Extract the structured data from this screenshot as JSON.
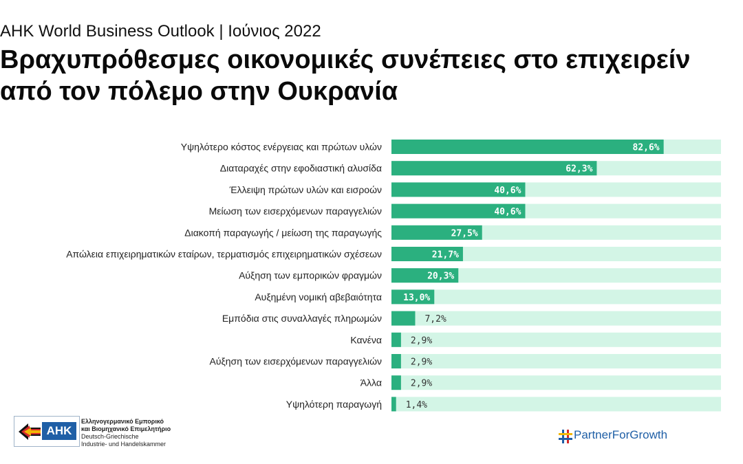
{
  "header": {
    "subtitle": "AHK World Business Outlook | Ιούνιος 2022",
    "title": "Βραχυπρόθεσμες οικονομικές συνέπειες στο επιχειρείν από τον πόλεμο στην Ουκρανία"
  },
  "chart_data": {
    "type": "bar",
    "orientation": "horizontal",
    "categories": [
      "Υψηλότερο κόστος ενέργειας και πρώτων υλών",
      "Διαταραχές στην εφοδιαστική αλυσίδα",
      "Έλλειψη πρώτων υλών και εισροών",
      "Μείωση των εισερχόμενων παραγγελιών",
      "Διακοπή παραγωγής / μείωση της παραγωγής",
      "Απώλεια επιχειρηματικών εταίρων, τερματισμός επιχειρηματικών σχέσεων",
      "Αύξηση των εμπορικών φραγμών",
      "Αυξημένη νομική αβεβαιότητα",
      "Εμπόδια στις συναλλαγές πληρωμών",
      "Κανένα",
      "Αύξηση των εισερχόμενων παραγγελιών",
      "Άλλα",
      "Υψηλότερη παραγωγή"
    ],
    "values": [
      82.6,
      62.3,
      40.6,
      40.6,
      27.5,
      21.7,
      20.3,
      13.0,
      7.2,
      2.9,
      2.9,
      2.9,
      1.4
    ],
    "value_labels": [
      "82,6%",
      "62,3%",
      "40,6%",
      "40,6%",
      "27,5%",
      "21,7%",
      "20,3%",
      "13,0%",
      "7,2%",
      "2,9%",
      "2,9%",
      "2,9%",
      "1,4%"
    ],
    "xlim": [
      0,
      100
    ],
    "colors": {
      "bar": "#2bb07f",
      "track": "#d3f5e6"
    },
    "grid": false,
    "legend": "none"
  },
  "footer": {
    "ahk_logo_text": "AHK",
    "ahk_org_lines": [
      "Ελληνογερμανικό Εμπορικό",
      "και Βιομηχανικό Επιμελητήριο",
      "Deutsch-Griechische",
      "Industrie- und Handelskammer"
    ],
    "partner_logo": "PartnerForGrowth",
    "colors": {
      "brand_blue": "#1f5fa6",
      "flag_red": "#d42a2a",
      "flag_gold": "#f2b705"
    }
  }
}
